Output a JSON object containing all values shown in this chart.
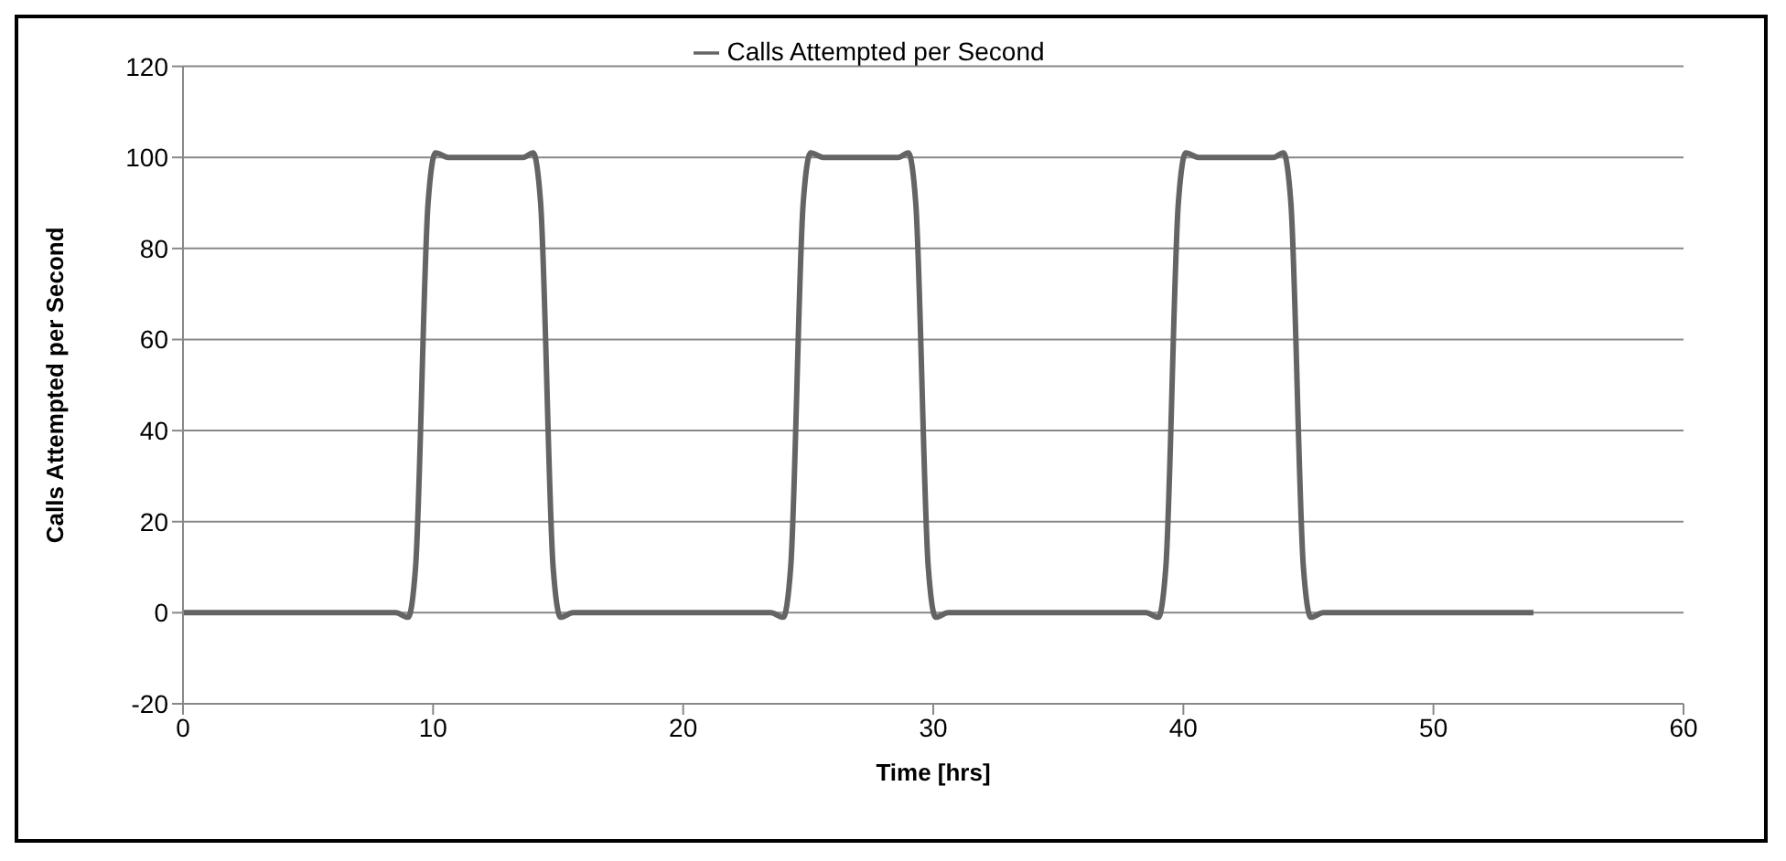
{
  "chart_data": {
    "type": "line",
    "xlabel": "Time [hrs]",
    "ylabel": "Calls Attempted per Second",
    "x": [
      0,
      8.5,
      9.0,
      9.3,
      9.8,
      10.1,
      10.6,
      13.6,
      14.0,
      14.3,
      14.8,
      15.1,
      15.6,
      23.5,
      24.0,
      24.3,
      24.8,
      25.1,
      25.6,
      28.6,
      29.0,
      29.3,
      29.8,
      30.1,
      30.6,
      38.5,
      39.0,
      39.3,
      39.8,
      40.1,
      40.6,
      43.6,
      44.0,
      44.3,
      44.8,
      45.1,
      45.6,
      54
    ],
    "series": [
      {
        "name": "Calls Attempted per Second",
        "color": "#646464",
        "values": [
          0,
          0,
          -1,
          10,
          90,
          101,
          100,
          100,
          101,
          90,
          10,
          -1,
          0,
          0,
          -1,
          10,
          90,
          101,
          100,
          100,
          101,
          90,
          10,
          -1,
          0,
          0,
          -1,
          10,
          90,
          101,
          100,
          100,
          101,
          90,
          10,
          -1,
          0,
          0
        ]
      }
    ],
    "xlim": [
      0,
      60
    ],
    "xticks": [
      0,
      10,
      20,
      30,
      40,
      50,
      60
    ],
    "ylim": [
      -20,
      120
    ],
    "yticks": [
      -20,
      0,
      20,
      40,
      60,
      80,
      100,
      120
    ],
    "grid": "y",
    "legend": "top",
    "marker": "none",
    "line_style": "solid"
  }
}
